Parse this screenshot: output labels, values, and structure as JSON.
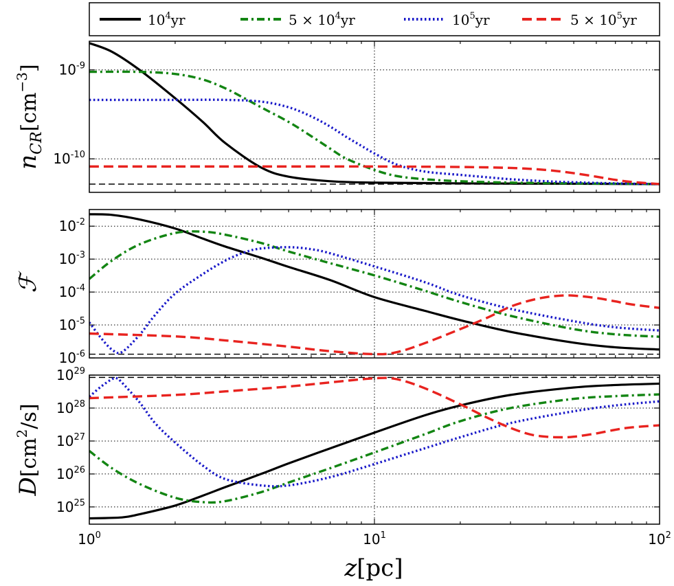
{
  "figure": {
    "xlabel_var": "z",
    "xlabel_unit": "[pc]",
    "legend": {
      "placement": "top",
      "entries": [
        {
          "base": "10",
          "exp": "4",
          "unit": "yr",
          "color": "#000000",
          "style": "solid"
        },
        {
          "pre": "5 × ",
          "base": "10",
          "exp": "4",
          "unit": "yr",
          "color": "#138513",
          "style": "dashdot"
        },
        {
          "base": "10",
          "exp": "5",
          "unit": "yr",
          "color": "#1a1ac9",
          "style": "dotted"
        },
        {
          "pre": "5 × ",
          "base": "10",
          "exp": "5",
          "unit": "yr",
          "color": "#e8231f",
          "style": "dashed"
        }
      ]
    },
    "x_ticks": [
      {
        "base": "10",
        "exp": "0",
        "value": 1
      },
      {
        "base": "10",
        "exp": "1",
        "value": 10
      },
      {
        "base": "10",
        "exp": "2",
        "value": 100
      }
    ]
  },
  "chart_data": [
    {
      "type": "line",
      "ylabel": "n_CR [cm^-3]",
      "ylabel_var": "n",
      "ylabel_sub": "CR",
      "ylabel_unit": "[cm",
      "ylabel_unit_exp": "−3",
      "ylabel_unit_close": "]",
      "x_scale": "log",
      "y_scale": "log",
      "xlim": [
        1,
        100
      ],
      "ylim": [
        4.2e-11,
        2.1e-09
      ],
      "grid": true,
      "y_ticks": [
        {
          "base": "10",
          "exp": "-9",
          "value": 1e-09
        },
        {
          "base": "10",
          "exp": "-10",
          "value": 1e-10
        }
      ],
      "reference_line": {
        "y": 5.2e-11,
        "style": "dashed",
        "color": "#000000"
      },
      "series": [
        {
          "name": "10^4 yr",
          "color": "#000000",
          "style": "solid",
          "x": [
            1,
            1.2,
            1.5,
            2,
            2.5,
            3,
            4,
            5,
            7,
            10,
            20,
            50,
            100
          ],
          "y": [
            2e-09,
            1.6e-09,
            1e-09,
            4.8e-10,
            2.6e-10,
            1.5e-10,
            8e-11,
            6.3e-11,
            5.6e-11,
            5.4e-11,
            5.3e-11,
            5.25e-11,
            5.2e-11
          ]
        },
        {
          "name": "5×10^4 yr",
          "color": "#138513",
          "style": "dashdot",
          "x": [
            1,
            1.5,
            2,
            2.5,
            3,
            3.5,
            4,
            5,
            6,
            7,
            8,
            10,
            12,
            15,
            20,
            30,
            50,
            100
          ],
          "y": [
            9.5e-10,
            9.5e-10,
            9e-10,
            7.8e-10,
            6.2e-10,
            4.8e-10,
            3.8e-10,
            2.6e-10,
            1.8e-10,
            1.3e-10,
            1e-10,
            7.5e-11,
            6.4e-11,
            5.9e-11,
            5.6e-11,
            5.4e-11,
            5.3e-11,
            5.2e-11
          ]
        },
        {
          "name": "10^5 yr",
          "color": "#1a1ac9",
          "style": "dotted",
          "x": [
            1,
            2,
            3,
            4,
            5,
            6,
            7,
            8,
            9,
            10,
            12,
            15,
            20,
            25,
            30,
            40,
            50,
            70,
            100
          ],
          "y": [
            4.6e-10,
            4.6e-10,
            4.6e-10,
            4.4e-10,
            3.8e-10,
            3e-10,
            2.3e-10,
            1.75e-10,
            1.4e-10,
            1.15e-10,
            8.6e-11,
            7.2e-11,
            6.6e-11,
            6.2e-11,
            5.9e-11,
            5.6e-11,
            5.45e-11,
            5.3e-11,
            5.2e-11
          ]
        },
        {
          "name": "5×10^5 yr",
          "color": "#e8231f",
          "style": "dashed",
          "x": [
            1,
            5,
            10,
            20,
            30,
            40,
            50,
            60,
            70,
            80,
            100
          ],
          "y": [
            8.2e-11,
            8.2e-11,
            8.2e-11,
            8.1e-11,
            7.9e-11,
            7.5e-11,
            6.9e-11,
            6.3e-11,
            5.8e-11,
            5.5e-11,
            5.2e-11
          ]
        }
      ]
    },
    {
      "type": "line",
      "ylabel": "F",
      "ylabel_var": "ℱ",
      "x_scale": "log",
      "y_scale": "log",
      "xlim": [
        1,
        100
      ],
      "ylim": [
        1e-06,
        0.032
      ],
      "grid": true,
      "y_ticks": [
        {
          "base": "10",
          "exp": "-2",
          "value": 0.01
        },
        {
          "base": "10",
          "exp": "-3",
          "value": 0.001
        },
        {
          "base": "10",
          "exp": "-4",
          "value": 0.0001
        },
        {
          "base": "10",
          "exp": "-5",
          "value": 1e-05
        },
        {
          "base": "10",
          "exp": "-6",
          "value": 1e-06
        }
      ],
      "reference_line": {
        "y": 1.3e-06,
        "style": "dashed",
        "color": "#000000"
      },
      "series": [
        {
          "name": "10^4 yr",
          "color": "#000000",
          "style": "solid",
          "x": [
            1,
            1.2,
            1.5,
            2,
            2.5,
            3,
            4,
            5,
            7,
            10,
            15,
            20,
            30,
            50,
            70,
            100
          ],
          "y": [
            0.023,
            0.022,
            0.016,
            0.0085,
            0.0042,
            0.0024,
            0.0011,
            0.00058,
            0.00023,
            7e-05,
            2.7e-05,
            1.4e-05,
            6.2e-06,
            2.9e-06,
            2.1e-06,
            1.8e-06
          ]
        },
        {
          "name": "5×10^4 yr",
          "color": "#138513",
          "style": "dashdot",
          "x": [
            1,
            1.2,
            1.5,
            2,
            2.5,
            3,
            4,
            5,
            7,
            10,
            15,
            20,
            30,
            50,
            70,
            100
          ],
          "y": [
            0.00025,
            0.0009,
            0.0028,
            0.0062,
            0.0068,
            0.0055,
            0.0031,
            0.0017,
            0.00075,
            0.00032,
            0.00011,
            5e-05,
            1.9e-05,
            7.5e-06,
            5.2e-06,
            4.4e-06
          ]
        },
        {
          "name": "10^5 yr",
          "color": "#1a1ac9",
          "style": "dotted",
          "x": [
            1,
            1.1,
            1.2,
            1.3,
            1.5,
            1.7,
            2,
            2.5,
            3,
            3.5,
            4,
            5,
            6,
            7,
            10,
            15,
            20,
            30,
            50,
            70,
            100
          ],
          "y": [
            1.2e-05,
            4e-06,
            1.8e-06,
            1.5e-06,
            5e-06,
            2e-05,
            9e-05,
            0.00035,
            0.0009,
            0.0016,
            0.0021,
            0.0023,
            0.002,
            0.0015,
            0.0006,
            0.0002,
            8e-05,
            3.1e-05,
            1.3e-05,
            8.5e-06,
            6.8e-06
          ]
        },
        {
          "name": "5×10^5 yr",
          "color": "#e8231f",
          "style": "dashed",
          "x": [
            1,
            2,
            3,
            5,
            7,
            10,
            12,
            15,
            20,
            25,
            30,
            35,
            40,
            45,
            50,
            60,
            70,
            80,
            100
          ],
          "y": [
            5.5e-06,
            4.5e-06,
            3.4e-06,
            2.2e-06,
            1.6e-06,
            1.3e-06,
            1.5e-06,
            2.8e-06,
            7.5e-06,
            1.7e-05,
            3.6e-05,
            5.5e-05,
            7e-05,
            7.8e-05,
            7.8e-05,
            6.6e-05,
            5.2e-05,
            4.2e-05,
            3.3e-05
          ]
        }
      ]
    },
    {
      "type": "line",
      "ylabel": "D [cm^2/s]",
      "ylabel_var": "D",
      "ylabel_unit": "[cm",
      "ylabel_unit_exp": "2",
      "ylabel_unit_close": "/s]",
      "x_scale": "log",
      "y_scale": "log",
      "xlim": [
        1,
        100
      ],
      "ylim": [
        3e+24,
        1e+29
      ],
      "grid": true,
      "y_ticks": [
        {
          "base": "10",
          "exp": "29",
          "value": 1e+29
        },
        {
          "base": "10",
          "exp": "28",
          "value": 1e+28
        },
        {
          "base": "10",
          "exp": "27",
          "value": 1e+27
        },
        {
          "base": "10",
          "exp": "26",
          "value": 1e+26
        },
        {
          "base": "10",
          "exp": "25",
          "value": 1e+25
        }
      ],
      "reference_line": {
        "y": 8.5e+28,
        "style": "dashed",
        "color": "#000000"
      },
      "series": [
        {
          "name": "10^4 yr",
          "color": "#000000",
          "style": "solid",
          "x": [
            1,
            1.3,
            1.5,
            2,
            2.5,
            3,
            4,
            5,
            7,
            10,
            15,
            20,
            30,
            50,
            70,
            100
          ],
          "y": [
            4.5e+24,
            4.8e+24,
            6e+24,
            1.1e+25,
            2.2e+25,
            4e+25,
            1e+26,
            2.1e+26,
            6e+26,
            1.8e+27,
            6e+27,
            1.2e+28,
            2.5e+28,
            4.2e+28,
            5e+28,
            5.5e+28
          ]
        },
        {
          "name": "5×10^4 yr",
          "color": "#138513",
          "style": "dashdot",
          "x": [
            1,
            1.2,
            1.5,
            2,
            2.5,
            3,
            4,
            5,
            7,
            10,
            15,
            20,
            30,
            50,
            70,
            100
          ],
          "y": [
            5e+26,
            1.5e+26,
            5e+25,
            1.9e+25,
            1.4e+25,
            1.5e+25,
            2.8e+25,
            5.5e+25,
            1.5e+26,
            4.5e+26,
            1.6e+27,
            4e+27,
            1e+28,
            1.9e+28,
            2.3e+28,
            2.6e+28
          ]
        },
        {
          "name": "10^5 yr",
          "color": "#1a1ac9",
          "style": "dotted",
          "x": [
            1,
            1.1,
            1.2,
            1.25,
            1.3,
            1.5,
            1.7,
            2,
            2.5,
            3,
            4,
            5,
            7,
            10,
            15,
            20,
            30,
            50,
            70,
            100
          ],
          "y": [
            2.2e+28,
            4.5e+28,
            7.5e+28,
            8e+28,
            6e+28,
            1.5e+28,
            3.5e+27,
            9e+26,
            1.8e+26,
            7e+25,
            4.5e+25,
            4.5e+25,
            8e+25,
            2e+26,
            6e+26,
            1.3e+27,
            3.5e+27,
            8e+27,
            1.2e+28,
            1.6e+28
          ]
        },
        {
          "name": "5×10^5 yr",
          "color": "#e8231f",
          "style": "dashed",
          "x": [
            1,
            2,
            3,
            5,
            7,
            10,
            12,
            15,
            20,
            25,
            30,
            35,
            40,
            45,
            50,
            60,
            70,
            80,
            100
          ],
          "y": [
            2e+28,
            2.5e+28,
            3.2e+28,
            4.5e+28,
            6e+28,
            8e+28,
            7.5e+28,
            4e+28,
            1.3e+28,
            5e+27,
            2.5e+27,
            1.6e+27,
            1.35e+27,
            1.3e+27,
            1.35e+27,
            1.7e+27,
            2.2e+27,
            2.6e+27,
            3e+27
          ]
        }
      ]
    }
  ]
}
